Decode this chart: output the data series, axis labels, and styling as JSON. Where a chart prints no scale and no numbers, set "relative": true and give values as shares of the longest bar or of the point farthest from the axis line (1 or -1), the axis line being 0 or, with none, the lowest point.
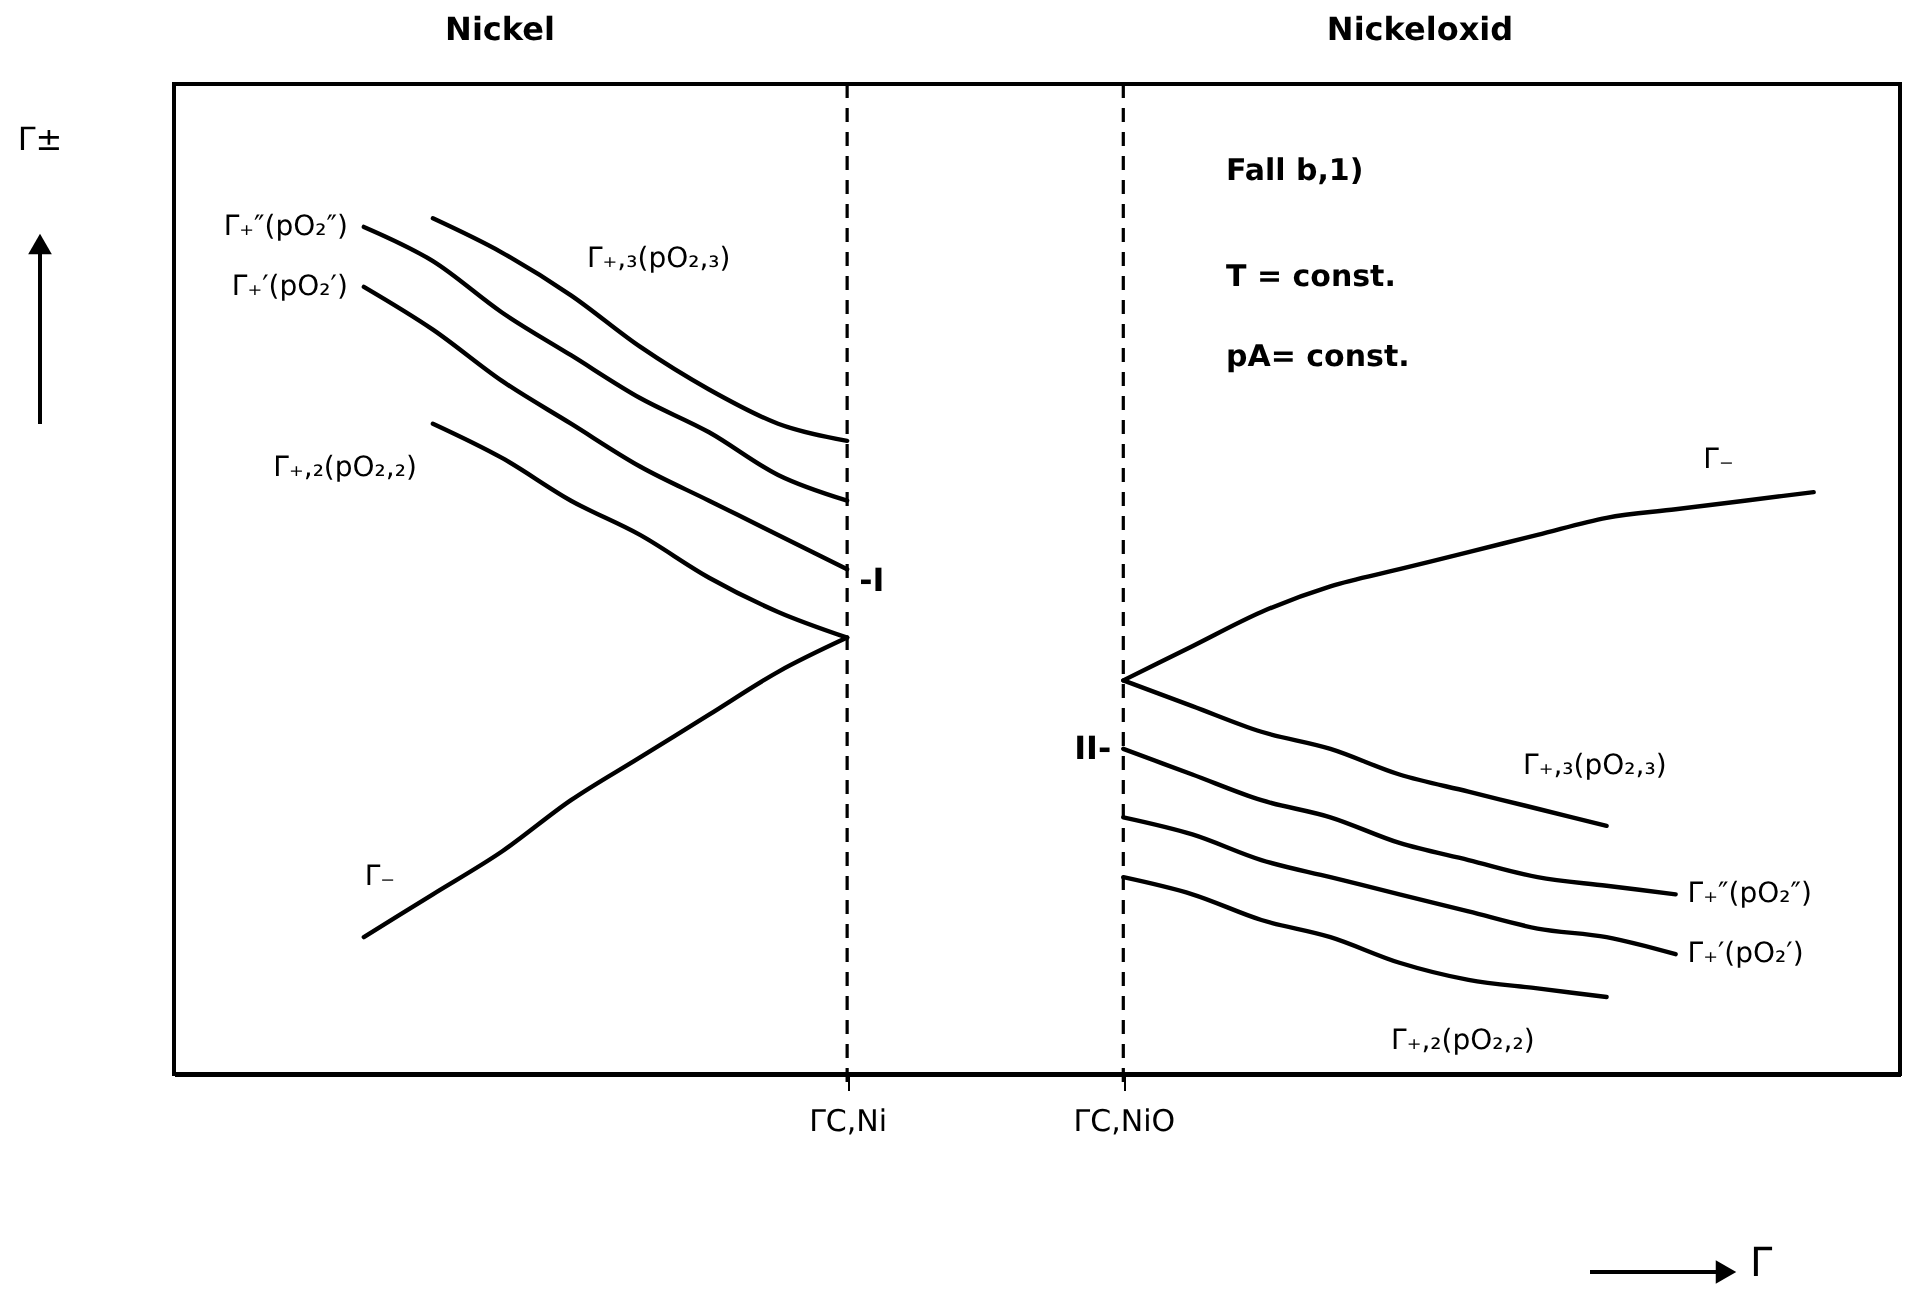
{
  "chart_data": {
    "type": "line",
    "relative": true,
    "categories": [
      null,
      null,
      null,
      null,
      null,
      null,
      null,
      null,
      null,
      "ΓC,Ni",
      null,
      null,
      null,
      "ΓC,NiO",
      null,
      null,
      null,
      null,
      null,
      null,
      null,
      null,
      null,
      null,
      null
    ],
    "xlabel": "Γ",
    "ylabel": "Γ±",
    "ref_lines": [
      {
        "axis": "x",
        "value": "ΓC,Ni",
        "line_style": "dashed",
        "color": "#000000"
      },
      {
        "axis": "x",
        "value": "ΓC,NiO",
        "line_style": "dashed",
        "color": "#000000"
      }
    ],
    "annotations": [
      "Nickel",
      "Nickeloxid",
      "Fall b,1)",
      "T = const.",
      "pA= const.",
      {
        "text": "-I",
        "x": "ΓC,Ni",
        "y": 0.59
      },
      {
        "text": "II-",
        "x": "ΓC,NiO",
        "y": 0.38
      }
    ],
    "series": [
      {
        "name": "Γ₊,₃(pO₂,₃)",
        "color": "#000000",
        "values": [
          null,
          null,
          null,
          1.0,
          0.96,
          0.91,
          0.85,
          0.8,
          0.76,
          0.74,
          null,
          null,
          null,
          null,
          null,
          null,
          null,
          null,
          null,
          null,
          null,
          null,
          null,
          null,
          null
        ]
      },
      {
        "name": "Γ₊″(pO₂″)",
        "color": "#000000",
        "values": [
          null,
          null,
          0.99,
          0.95,
          0.89,
          0.84,
          0.79,
          0.75,
          0.7,
          0.67,
          null,
          null,
          null,
          null,
          null,
          null,
          null,
          null,
          null,
          null,
          null,
          null,
          null,
          null,
          null
        ]
      },
      {
        "name": "Γ₊′(pO₂′)",
        "color": "#000000",
        "values": [
          null,
          null,
          0.92,
          0.87,
          0.81,
          0.76,
          0.71,
          0.67,
          0.63,
          0.59,
          null,
          null,
          null,
          null,
          null,
          null,
          null,
          null,
          null,
          null,
          null,
          null,
          null,
          null,
          null
        ]
      },
      {
        "name": "Γ₊,₂(pO₂,₂)",
        "color": "#000000",
        "values": [
          null,
          null,
          null,
          0.76,
          0.72,
          0.67,
          0.63,
          0.58,
          0.54,
          0.51,
          null,
          null,
          null,
          null,
          null,
          null,
          null,
          null,
          null,
          null,
          null,
          null,
          null,
          null,
          null
        ]
      },
      {
        "name": "Γ₋",
        "color": "#000000",
        "values": [
          null,
          null,
          0.16,
          0.21,
          0.26,
          0.32,
          0.37,
          0.42,
          0.47,
          0.51,
          null,
          null,
          null,
          null,
          null,
          null,
          null,
          null,
          null,
          null,
          null,
          null,
          null,
          null,
          null
        ]
      },
      {
        "name": "Γ₋",
        "color": "#000000",
        "values": [
          null,
          null,
          null,
          null,
          null,
          null,
          null,
          null,
          null,
          null,
          null,
          null,
          null,
          0.46,
          0.5,
          0.54,
          0.57,
          0.59,
          0.61,
          0.63,
          0.65,
          0.66,
          0.67,
          0.68,
          null
        ]
      },
      {
        "name": "Γ₊,₃(pO₂,₃)",
        "color": "#000000",
        "values": [
          null,
          null,
          null,
          null,
          null,
          null,
          null,
          null,
          null,
          null,
          null,
          null,
          null,
          0.46,
          0.43,
          0.4,
          0.38,
          0.35,
          0.33,
          0.31,
          0.29,
          null,
          null,
          null,
          null
        ]
      },
      {
        "name": "Γ₊″(pO₂″)",
        "color": "#000000",
        "values": [
          null,
          null,
          null,
          null,
          null,
          null,
          null,
          null,
          null,
          null,
          null,
          null,
          null,
          0.38,
          0.35,
          0.32,
          0.3,
          0.27,
          0.25,
          0.23,
          0.22,
          0.21,
          null,
          null,
          null
        ]
      },
      {
        "name": "Γ₊′(pO₂′)",
        "color": "#000000",
        "values": [
          null,
          null,
          null,
          null,
          null,
          null,
          null,
          null,
          null,
          null,
          null,
          null,
          null,
          0.3,
          0.28,
          0.25,
          0.23,
          0.21,
          0.19,
          0.17,
          0.16,
          0.14,
          null,
          null,
          null
        ]
      },
      {
        "name": "Γ₊,₂(pO₂,₂)",
        "color": "#000000",
        "values": [
          null,
          null,
          null,
          null,
          null,
          null,
          null,
          null,
          null,
          null,
          null,
          null,
          null,
          0.23,
          0.21,
          0.18,
          0.16,
          0.13,
          0.11,
          0.1,
          0.09,
          null,
          null,
          null,
          null
        ]
      }
    ]
  }
}
